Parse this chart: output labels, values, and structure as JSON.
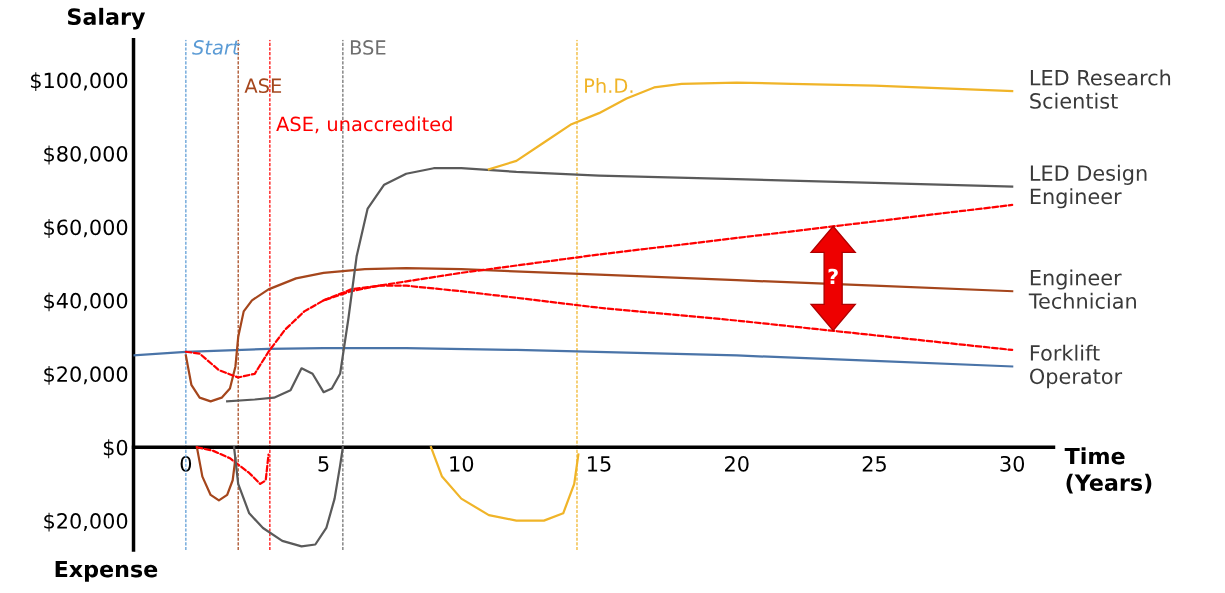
{
  "chart_data": {
    "type": "line",
    "ylabel": "Salary",
    "xlabel": "Time\n(Years)",
    "xlim": [
      -1.9,
      31.5
    ],
    "ylim": [
      -28000,
      111000
    ],
    "xticks": [
      0,
      5,
      10,
      15,
      20,
      25,
      30
    ],
    "yticks": [
      {
        "value": -20000,
        "label": "$20,000"
      },
      {
        "value": 0,
        "label": "$0"
      },
      {
        "value": 20000,
        "label": "$20,000"
      },
      {
        "value": 40000,
        "label": "$40,000"
      },
      {
        "value": 60000,
        "label": "$60,000"
      },
      {
        "value": 80000,
        "label": "$80,000"
      },
      {
        "value": 100000,
        "label": "$100,000"
      }
    ],
    "grid": false,
    "legend": false,
    "marker": "none",
    "series": [
      {
        "name": "Forklift\nOperator",
        "color": "#4a74a8",
        "line_style": "solid",
        "x": [
          -1.9,
          0,
          3,
          5,
          8,
          12,
          20,
          25,
          30
        ],
        "values": [
          25000,
          26000,
          26800,
          27000,
          27000,
          26500,
          25000,
          23500,
          22000
        ]
      },
      {
        "color": "#a5461c",
        "line_style": "solid",
        "x": [
          0.4,
          0.6,
          0.9,
          1.2,
          1.5,
          1.7,
          1.8
        ],
        "values": [
          0,
          -8000,
          -13000,
          -14500,
          -13000,
          -9000,
          -3000
        ]
      },
      {
        "name": "Engineer\nTechnician",
        "color": "#a5461c",
        "line_style": "solid",
        "x": [
          0,
          0.2,
          0.5,
          0.9,
          1.3,
          1.6,
          1.8,
          1.9,
          2.1,
          2.4,
          3,
          4,
          5,
          6.5,
          8,
          10,
          15,
          20,
          25,
          30
        ],
        "values": [
          25000,
          17000,
          13500,
          12500,
          13500,
          16000,
          22000,
          30000,
          37000,
          40000,
          43000,
          46000,
          47500,
          48500,
          48800,
          48500,
          47000,
          45500,
          44000,
          42500
        ]
      },
      {
        "color": "#ff0000",
        "line_style": "dashed",
        "x": [
          0.4,
          1,
          1.6,
          2.3,
          2.7,
          2.9,
          3.0
        ],
        "values": [
          0,
          -1000,
          -3000,
          -7000,
          -10000,
          -9000,
          -2000
        ]
      },
      {
        "color": "#ff0000",
        "line_style": "dashed",
        "x": [
          0,
          0.5,
          1.2,
          1.9,
          2.5,
          3,
          3.6,
          4.3,
          5,
          6,
          7,
          10,
          15,
          20,
          25,
          30
        ],
        "values": [
          26000,
          25500,
          21000,
          19000,
          20000,
          26000,
          32000,
          37000,
          40000,
          42500,
          44000,
          47500,
          52500,
          57000,
          61500,
          66000
        ]
      },
      {
        "color": "#ff0000",
        "line_style": "dashed",
        "x": [
          5,
          6,
          7,
          8,
          10,
          15,
          20,
          25,
          30
        ],
        "values": [
          40000,
          43000,
          44000,
          44000,
          42500,
          38000,
          34500,
          30500,
          26500
        ]
      },
      {
        "color": "#5a5a5a",
        "line_style": "solid",
        "x": [
          1.75,
          1.9,
          2.3,
          2.8,
          3.5,
          4.2,
          4.7,
          5.1,
          5.4,
          5.6,
          5.7
        ],
        "values": [
          0,
          -10000,
          -18000,
          -22000,
          -25500,
          -27000,
          -26500,
          -22000,
          -14000,
          -5000,
          0
        ]
      },
      {
        "name": "LED Design\nEngineer",
        "color": "#5a5a5a",
        "line_style": "solid",
        "x": [
          1.5,
          2.5,
          3.2,
          3.8,
          4.2,
          4.6,
          5.0,
          5.3,
          5.6,
          5.9,
          6.2,
          6.6,
          7.2,
          8,
          9,
          10,
          12,
          15,
          20,
          25,
          30
        ],
        "values": [
          12500,
          13000,
          13500,
          15500,
          21500,
          20000,
          15000,
          16000,
          20000,
          35000,
          52000,
          65000,
          71500,
          74500,
          76000,
          76000,
          75000,
          74000,
          73000,
          72000,
          71000
        ]
      },
      {
        "color": "#f0b428",
        "line_style": "solid",
        "x": [
          8.9,
          9.3,
          10,
          11,
          12,
          13,
          13.7,
          14.1,
          14.25
        ],
        "values": [
          0,
          -8000,
          -14000,
          -18500,
          -20000,
          -20000,
          -18000,
          -10000,
          -2000
        ]
      },
      {
        "name": "LED Research\nScientist",
        "color": "#f0b428",
        "line_style": "solid",
        "x": [
          11,
          12,
          13,
          14,
          15,
          16,
          17,
          18,
          20,
          22,
          25,
          30
        ],
        "values": [
          75700,
          78000,
          83000,
          88000,
          91000,
          95000,
          98000,
          99000,
          99300,
          99000,
          98500,
          97000
        ]
      }
    ],
    "ref_lines": [
      {
        "axis": "x",
        "value": 0,
        "label": "Start",
        "color": "#5b9bd5",
        "line_style": "dashed"
      },
      {
        "axis": "x",
        "value": 1.9,
        "label": "ASE",
        "color": "#a5461c",
        "line_style": "dashed"
      },
      {
        "axis": "x",
        "value": 3.05,
        "label": "ASE, unaccredited",
        "color": "#ff0000",
        "line_style": "dashed"
      },
      {
        "axis": "x",
        "value": 5.7,
        "label": "BSE",
        "color": "#6e6e6e",
        "line_style": "dashed"
      },
      {
        "axis": "x",
        "value": 14.2,
        "label": "Ph.D.",
        "color": "#f0b428",
        "line_style": "dashed"
      }
    ],
    "annotations": [
      "Expense",
      {
        "text": "?",
        "x": 23.5,
        "y": 46000
      }
    ]
  }
}
